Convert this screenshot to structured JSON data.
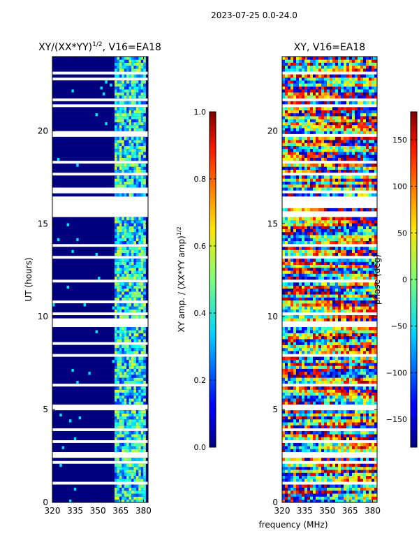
{
  "suptitle": "2023-07-25 0.0-24.0",
  "chart_data": [
    {
      "type": "heatmap",
      "title": "XY/(XX*YY)",
      "title_sup": "1/2",
      "title_tail": ", V16=EA18",
      "xlabel": "",
      "ylabel": "UT (hours)",
      "xlim": [
        320,
        383
      ],
      "ylim": [
        0,
        24
      ],
      "xticks": [
        320,
        335,
        350,
        365,
        380
      ],
      "yticks": [
        0,
        5,
        10,
        15,
        20
      ],
      "colormap": "jet",
      "colorbar": {
        "label": "XY amp. / (XX*YY amp)",
        "label_sup": "1/2",
        "range": [
          0.0,
          1.0
        ],
        "ticks": [
          "0.0",
          "0.2",
          "0.4",
          "0.6",
          "0.8",
          "1.0"
        ]
      }
    },
    {
      "type": "heatmap",
      "title": "XY, V16=EA18",
      "xlabel": "frequency (MHz)",
      "ylabel": "",
      "xlim": [
        320,
        383
      ],
      "ylim": [
        0,
        24
      ],
      "xticks": [
        320,
        335,
        350,
        365,
        380
      ],
      "yticks": [
        0,
        5,
        10,
        15,
        20
      ],
      "colormap": "jet",
      "colorbar": {
        "label": "phase (deg)",
        "range": [
          -180,
          180
        ],
        "ticks": [
          "−150",
          "−100",
          "−50",
          "0",
          "50",
          "100",
          "150"
        ]
      }
    }
  ],
  "colors": {
    "jet_dark_blue": "#00007f",
    "background": "#ffffff"
  }
}
